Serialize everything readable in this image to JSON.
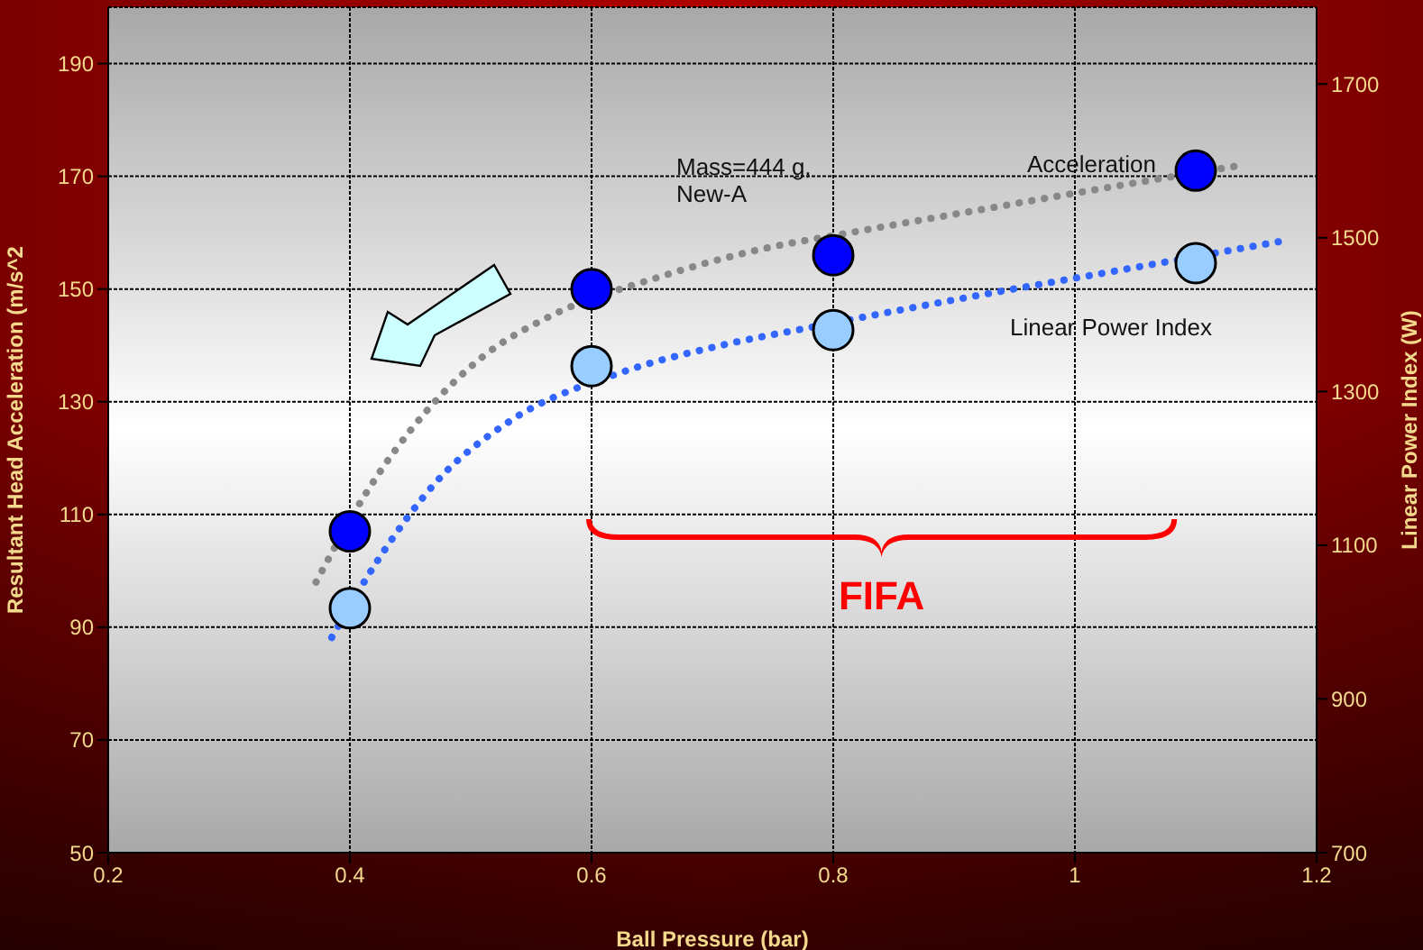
{
  "chart_data": {
    "type": "scatter",
    "xlabel": "Ball Pressure (bar)",
    "ylabel": "Resultant Head Acceleration (m/s^2",
    "y2label": "Linear Power Index (W)",
    "xlim": [
      0.2,
      1.2
    ],
    "xticks": [
      0.2,
      0.4,
      0.6,
      0.8,
      1,
      1.2
    ],
    "ylim": [
      50,
      200
    ],
    "yticks": [
      50,
      70,
      90,
      110,
      130,
      150,
      170,
      190
    ],
    "y2lim": [
      700,
      1800
    ],
    "y2ticks": [
      700,
      900,
      1100,
      1300,
      1500,
      1700
    ],
    "grid": true,
    "legend": false,
    "annotations": [
      "Mass=444 g,\nNew-A",
      "FIFA"
    ],
    "series": [
      {
        "type": "line",
        "color": "#888888",
        "line_style": "dotted",
        "marker": "none",
        "x": [
          0.372,
          0.414,
          0.462,
          0.51,
          0.564,
          0.654,
          0.739,
          0.814,
          0.92,
          1.027,
          1.139
        ],
        "values": [
          98,
          114,
          128,
          138,
          145,
          152,
          157,
          160,
          164,
          168,
          172
        ]
      },
      {
        "type": "line",
        "axis": "y2",
        "color": "#3366ff",
        "line_style": "dotted",
        "marker": "none",
        "x": [
          0.385,
          0.425,
          0.473,
          0.531,
          0.625,
          0.707,
          0.78,
          0.92,
          1.027,
          1.169
        ],
        "values": [
          980,
          1085,
          1185,
          1260,
          1325,
          1360,
          1383,
          1425,
          1455,
          1495
        ]
      },
      {
        "name": "Acceleration",
        "color": "#0000ff",
        "marker": "circle",
        "x": [
          0.4,
          0.6,
          0.8,
          1.1
        ],
        "values": [
          107,
          150,
          156,
          171
        ]
      },
      {
        "name": "Linear Power Index",
        "axis": "y2",
        "color": "#99ccff",
        "marker": "circle",
        "x": [
          0.4,
          0.6,
          0.8,
          1.1
        ],
        "values": [
          1018,
          1333,
          1380,
          1467
        ]
      }
    ]
  }
}
